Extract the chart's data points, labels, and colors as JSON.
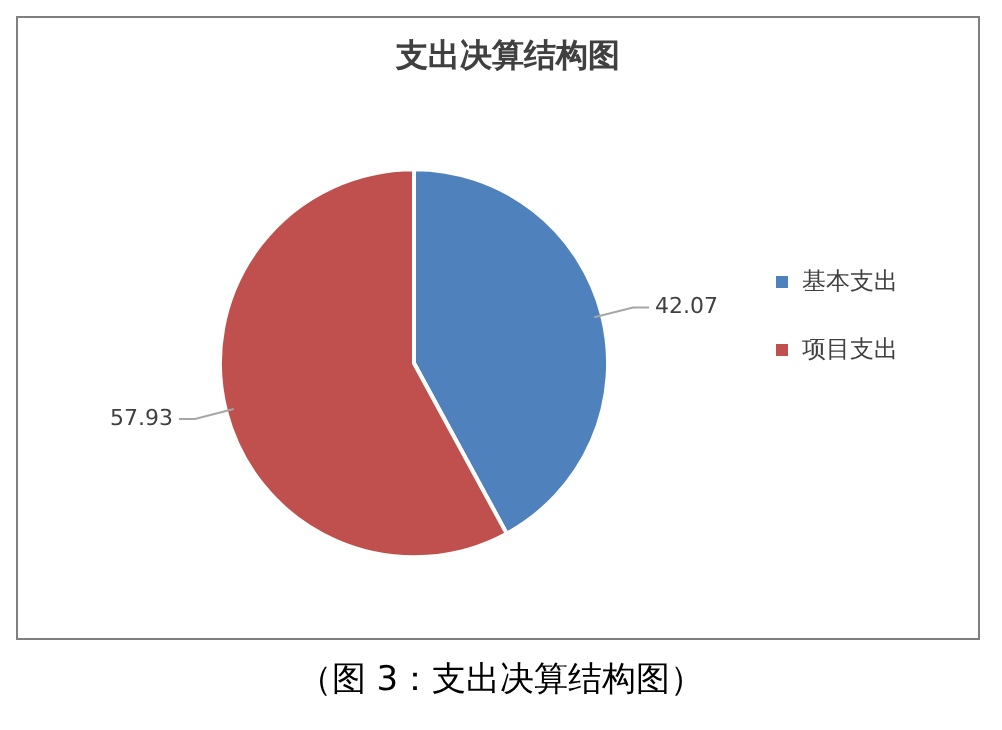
{
  "chart_data": {
    "type": "pie",
    "title": "支出决算结构图",
    "categories": [
      "基本支出",
      "项目支出"
    ],
    "values": [
      42.07,
      57.93
    ],
    "colors": [
      "#4f81bd",
      "#c0504d"
    ],
    "data_labels": true,
    "legend": "right",
    "annotations": [
      "（图 3：支出决算结构图）"
    ]
  }
}
